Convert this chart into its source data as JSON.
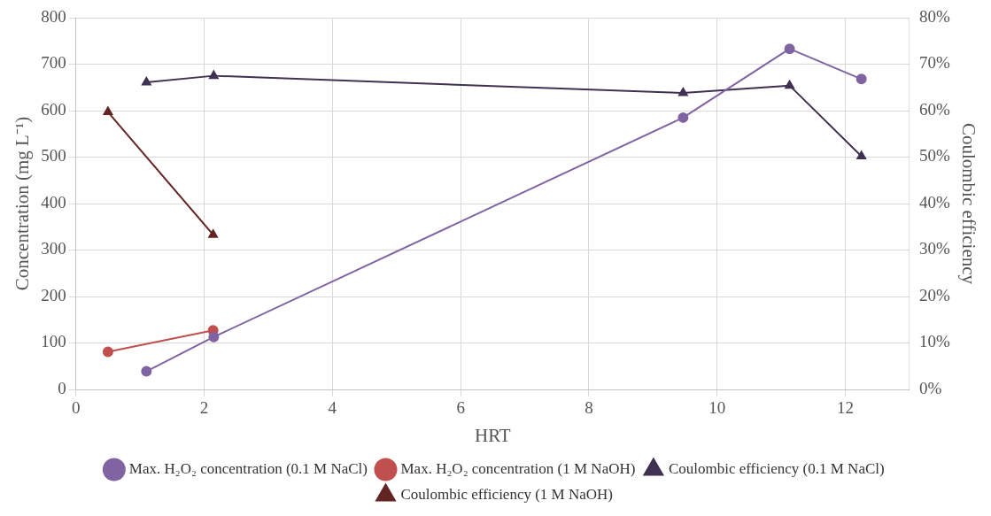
{
  "chart_data": {
    "type": "line",
    "xlabel": "HRT",
    "ylabel": "Concentration (mg L⁻¹)",
    "y2label": "Coulombic efficiency",
    "xlim": [
      0,
      13
    ],
    "xticks": [
      0,
      2,
      4,
      6,
      8,
      10,
      12
    ],
    "ylim": [
      0,
      800
    ],
    "yticks": [
      0,
      100,
      200,
      300,
      400,
      500,
      600,
      700,
      800
    ],
    "y2lim": [
      0,
      80
    ],
    "y2ticks": [
      {
        "value": 0,
        "label": "0%"
      },
      {
        "value": 10,
        "label": "10%"
      },
      {
        "value": 20,
        "label": "20%"
      },
      {
        "value": 30,
        "label": "30%"
      },
      {
        "value": 40,
        "label": "40%"
      },
      {
        "value": 50,
        "label": "50%"
      },
      {
        "value": 60,
        "label": "60%"
      },
      {
        "value": 70,
        "label": "70%"
      },
      {
        "value": 80,
        "label": "80%"
      }
    ],
    "grid": true,
    "legend": "bottom",
    "series": [
      {
        "name": "Max. H₂O₂ concentration (0.1 M NaCl)",
        "color": "#8064a2",
        "marker": "circle",
        "x": [
          1.1,
          2.15,
          9.47,
          11.13,
          12.25
        ],
        "values": [
          39,
          113,
          585,
          733,
          668
        ]
      },
      {
        "name": "Max. H₂O₂ concentration (1 M NaOH)",
        "color": "#c0504d",
        "marker": "circle",
        "x": [
          0.5,
          2.14
        ],
        "values": [
          81,
          127
        ]
      },
      {
        "name": "Coulombic efficiency (0.1 M NaCl)",
        "color": "#403152",
        "marker": "triangle",
        "axis": "y2",
        "x": [
          1.1,
          2.15,
          9.47,
          11.13,
          12.25
        ],
        "values": [
          66.1,
          67.5,
          63.8,
          65.4,
          50.2
        ]
      },
      {
        "name": "Coulombic efficiency (1 M NaOH)",
        "color": "#632523",
        "marker": "triangle",
        "axis": "y2",
        "x": [
          0.5,
          2.14
        ],
        "values": [
          59.7,
          33.3
        ]
      }
    ]
  }
}
